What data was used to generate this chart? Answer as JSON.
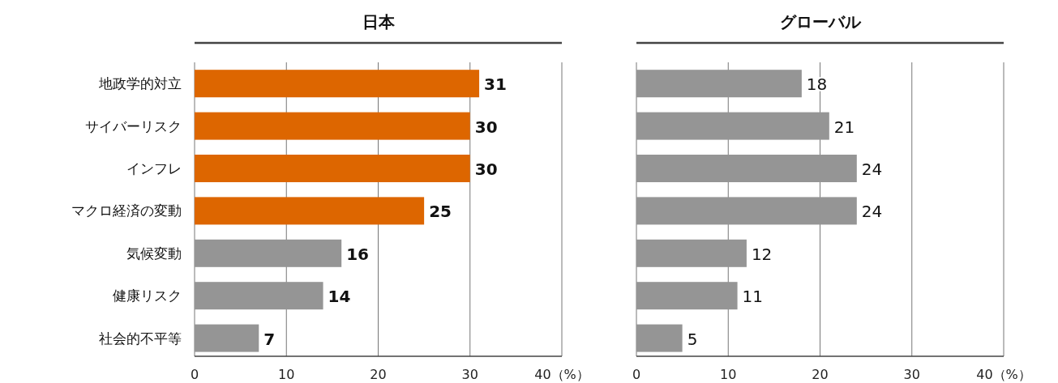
{
  "chart_data": [
    {
      "type": "bar",
      "orientation": "horizontal",
      "title": "日本",
      "categories": [
        "地政学的対立",
        "サイバーリスク",
        "インフレ",
        "マクロ経済の変動",
        "気候変動",
        "健康リスク",
        "社会的不平等"
      ],
      "values": [
        31,
        30,
        30,
        25,
        16,
        14,
        7
      ],
      "colors": [
        "#dd6600",
        "#dd6600",
        "#dd6600",
        "#dd6600",
        "#959595",
        "#959595",
        "#959595"
      ],
      "xlim": [
        0,
        40
      ],
      "xticks": [
        0,
        10,
        20,
        30,
        {
          "value": 40,
          "label": "40（%）"
        }
      ],
      "grid": "x",
      "data_labels": true
    },
    {
      "type": "bar",
      "orientation": "horizontal",
      "title": "グローバル",
      "categories": [
        null,
        null,
        null,
        null,
        null,
        null,
        null
      ],
      "values": [
        18,
        21,
        24,
        24,
        12,
        11,
        5
      ],
      "color": "#959595",
      "xlim": [
        0,
        40
      ],
      "xticks": [
        0,
        10,
        20,
        30,
        {
          "value": 40,
          "label": "40（%）"
        }
      ],
      "grid": "x",
      "data_labels": true,
      "tick_labels": "x"
    }
  ]
}
